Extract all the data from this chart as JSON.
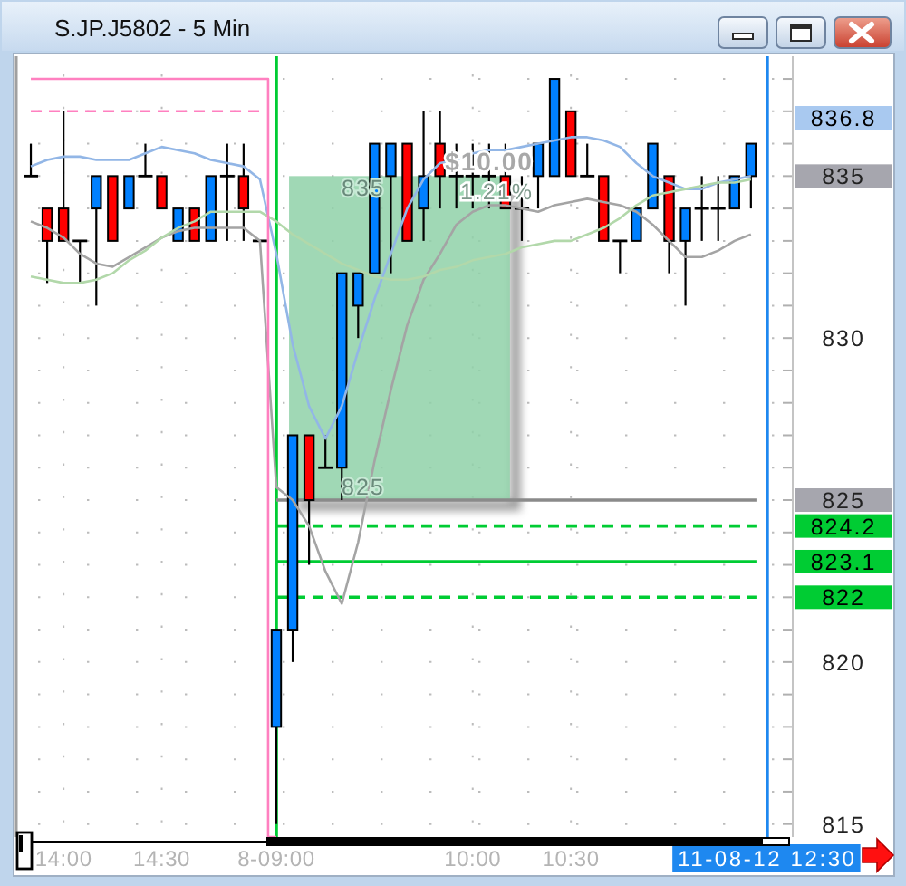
{
  "chart_data": {
    "type": "candlestick",
    "title": "S.JP.J5802 - 5 Min",
    "categories": [
      null,
      null,
      "14:00",
      null,
      null,
      null,
      null,
      null,
      "14:30",
      null,
      null,
      null,
      null,
      null,
      null,
      "8-09:00",
      null,
      null,
      null,
      null,
      null,
      null,
      null,
      null,
      null,
      null,
      null,
      "10:00",
      null,
      null,
      null,
      null,
      null,
      "10:30",
      null,
      null,
      null,
      null,
      null,
      null,
      null,
      null,
      null,
      null,
      null,
      "11-08-12 12:30",
      null
    ],
    "ohlc": [
      [
        835,
        836,
        835,
        835
      ],
      [
        834,
        834,
        831.7,
        833
      ],
      [
        834,
        837,
        833,
        833
      ],
      [
        833,
        833,
        831.7,
        833
      ],
      [
        834,
        835,
        831,
        835
      ],
      [
        835,
        835,
        833,
        833
      ],
      [
        834,
        835,
        834,
        835
      ],
      [
        835,
        836,
        835,
        835
      ],
      [
        835,
        835,
        834,
        834
      ],
      [
        833,
        834,
        833,
        834
      ],
      [
        834,
        834,
        833,
        833
      ],
      [
        833,
        835,
        833,
        835
      ],
      [
        835,
        836,
        833,
        835
      ],
      [
        835,
        836,
        833,
        834
      ],
      [
        833,
        833,
        833,
        833
      ],
      [
        818,
        821,
        815,
        821
      ],
      [
        821,
        827,
        820,
        827
      ],
      [
        827,
        827,
        823,
        825
      ],
      [
        826,
        827,
        826,
        826
      ],
      [
        826,
        832,
        825,
        832
      ],
      [
        831,
        832,
        830,
        832
      ],
      [
        832,
        836,
        832,
        836
      ],
      [
        835,
        836,
        832,
        836
      ],
      [
        836,
        836,
        833,
        833
      ],
      [
        834,
        837,
        833,
        835
      ],
      [
        836,
        837,
        834,
        835
      ],
      [
        835,
        836,
        834,
        835
      ],
      [
        835,
        836,
        834,
        835
      ],
      [
        835,
        836,
        834,
        835
      ],
      [
        835,
        836,
        834,
        834
      ],
      [
        834,
        835,
        833,
        834
      ],
      [
        835,
        836,
        834,
        836
      ],
      [
        835,
        838,
        835,
        838
      ],
      [
        837,
        837,
        835,
        835
      ],
      [
        835,
        836,
        835,
        835
      ],
      [
        835,
        835,
        833,
        833
      ],
      [
        833,
        833,
        832,
        833
      ],
      [
        833,
        834,
        833,
        834
      ],
      [
        834,
        836,
        834,
        836
      ],
      [
        835,
        835,
        832,
        833
      ],
      [
        833,
        834,
        831,
        834
      ],
      [
        834,
        835,
        833,
        834
      ],
      [
        834,
        835,
        833,
        834
      ],
      [
        834,
        835,
        834,
        835
      ],
      [
        835,
        836,
        834,
        836
      ],
      null,
      null
    ],
    "colors": [
      "#000000",
      "#ff0000",
      "#ff0000",
      "#000000",
      "#0080ff",
      "#ff0000",
      "#0080ff",
      "#000000",
      "#ff0000",
      "#0080ff",
      "#ff0000",
      "#0080ff",
      "#000000",
      "#ff0000",
      "#000000",
      "#0080ff",
      "#0080ff",
      "#ff0000",
      "#000000",
      "#0080ff",
      "#0080ff",
      "#0080ff",
      "#0080ff",
      "#ff0000",
      "#0080ff",
      "#ff0000",
      "#000000",
      "#000000",
      "#000000",
      "#ff0000",
      "#000000",
      "#0080ff",
      "#0080ff",
      "#ff0000",
      "#000000",
      "#ff0000",
      "#000000",
      "#0080ff",
      "#0080ff",
      "#ff0000",
      "#0080ff",
      "#000000",
      "#000000",
      "#0080ff",
      "#0080ff",
      null,
      null
    ],
    "series": [
      {
        "type": "line",
        "color": "#92b6e6",
        "values": [
          835.3,
          835.5,
          835.6,
          835.6,
          835.5,
          835.5,
          835.5,
          835.7,
          835.9,
          835.8,
          835.7,
          835.5,
          835.4,
          835.3,
          834.9,
          832.6,
          829.8,
          827.9,
          826.9,
          827.9,
          829.6,
          831.2,
          832.6,
          834,
          834.9,
          835.4,
          835.5,
          835.7,
          835.8,
          835.8,
          835.9,
          836,
          836.1,
          836.2,
          836.2,
          836.1,
          835.9,
          835.4,
          835,
          834.8,
          834.6,
          834.6,
          834.8,
          834.9,
          835,
          null,
          null
        ]
      },
      {
        "type": "line",
        "color": "#a4a4a4",
        "values": [
          833.6,
          833.4,
          833.1,
          832.6,
          832.3,
          832.2,
          832.5,
          832.8,
          833.1,
          833.3,
          833.4,
          833.4,
          833.4,
          833.4,
          833,
          825.4,
          825,
          824.2,
          822.8,
          821.8,
          823.7,
          826.2,
          828.4,
          830.4,
          831.8,
          832.6,
          833.5,
          833.9,
          834.1,
          834.1,
          834,
          833.9,
          834.1,
          834.2,
          834.3,
          834.2,
          834.1,
          833.9,
          833.5,
          833,
          832.5,
          832.5,
          832.7,
          833,
          833.2,
          null,
          null
        ]
      },
      {
        "type": "line",
        "color": "#b2d8aa",
        "values": [
          831.9,
          831.8,
          831.7,
          831.7,
          831.8,
          832,
          832.4,
          832.7,
          833.1,
          833.4,
          833.6,
          833.9,
          833.9,
          833.9,
          833.9,
          833.6,
          833.2,
          832.9,
          832.6,
          832.3,
          832.1,
          831.9,
          831.8,
          831.8,
          831.9,
          832.1,
          832.2,
          832.4,
          832.5,
          832.6,
          832.8,
          832.9,
          833,
          833,
          833.2,
          833.4,
          833.7,
          834.1,
          834.4,
          834.5,
          834.6,
          834.7,
          834.8,
          834.8,
          834.9,
          null,
          null
        ]
      },
      {
        "type": "step",
        "color": "#ff80c0",
        "values": [
          838,
          838,
          838,
          838,
          838,
          838,
          838,
          838,
          838,
          838,
          838,
          838,
          838,
          838,
          838,
          814.6,
          null,
          null,
          null,
          null,
          null,
          null,
          null,
          null,
          null,
          null,
          null,
          null,
          null,
          null,
          null,
          null,
          null,
          null,
          null,
          null,
          null,
          null,
          null,
          null,
          null,
          null,
          null,
          null,
          null,
          null,
          null
        ]
      },
      {
        "type": "line",
        "color": "#ff80c0",
        "line_style": "dashed",
        "values": [
          837,
          837,
          837,
          837,
          837,
          837,
          837,
          837,
          837,
          837,
          837,
          837,
          837,
          837,
          837,
          null,
          null,
          null,
          null,
          null,
          null,
          null,
          null,
          null,
          null,
          null,
          null,
          null,
          null,
          null,
          null,
          null,
          null,
          null,
          null,
          null,
          null,
          null,
          null,
          null,
          null,
          null,
          null,
          null,
          null,
          null,
          null
        ]
      }
    ],
    "ylim": [
      814.6,
      838.7
    ],
    "yticks": [
      815,
      {
        "value": 816,
        "label": null
      },
      {
        "value": 817,
        "label": null
      },
      {
        "value": 818,
        "label": null
      },
      {
        "value": 819,
        "label": null
      },
      820,
      {
        "value": 821,
        "label": null
      },
      {
        "value": 822,
        "label": null
      },
      {
        "value": 823,
        "label": null
      },
      {
        "value": 824,
        "label": null
      },
      825,
      {
        "value": 826,
        "label": null
      },
      {
        "value": 827,
        "label": null
      },
      {
        "value": 828,
        "label": null
      },
      {
        "value": 829,
        "label": null
      },
      830,
      {
        "value": 831,
        "label": null
      },
      {
        "value": 832,
        "label": null
      },
      {
        "value": 833,
        "label": null
      },
      {
        "value": 834,
        "label": null
      },
      835,
      {
        "value": 836,
        "label": null
      },
      {
        "value": 837,
        "label": null
      },
      {
        "value": 838,
        "label": null
      }
    ],
    "grid": true,
    "ref_lines": [
      {
        "axis": "x",
        "value": "8-09:00",
        "color": "#00cc33"
      },
      {
        "axis": "x",
        "value": "11-08-12 12:30",
        "color": "#1e88f0"
      },
      {
        "axis": "y",
        "value": 825,
        "color": "#8a8a8a"
      },
      {
        "axis": "y",
        "value": 824.2,
        "label": "824.2",
        "color": "#00cc33",
        "line_style": "dashed"
      },
      {
        "axis": "y",
        "value": 823.1,
        "label": "823.1",
        "color": "#00cc33"
      },
      {
        "axis": "y",
        "value": 822,
        "label": "822",
        "color": "#00cc33",
        "line_style": "dashed"
      }
    ],
    "bands": [
      {
        "axis": "y",
        "from": 825,
        "to": 835,
        "color": "#8fd1a8"
      }
    ],
    "annotations": [
      "836.8",
      "$10.00",
      "1.21%",
      {
        "text": "835",
        "y": 835
      },
      {
        "text": "825",
        "y": 825
      }
    ]
  }
}
